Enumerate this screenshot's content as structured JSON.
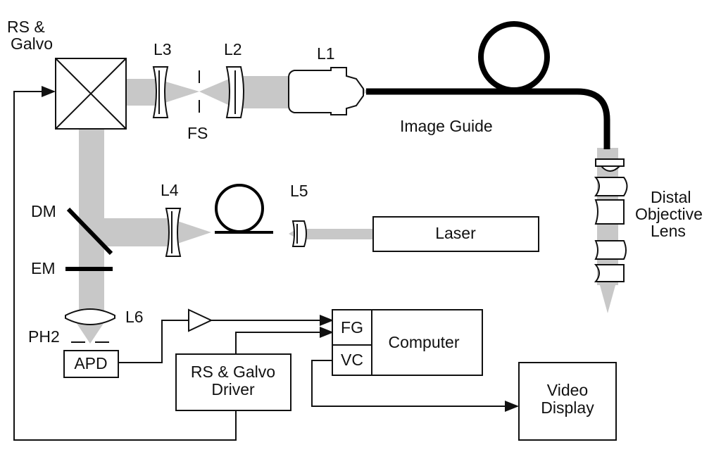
{
  "labels": {
    "rs_galvo": [
      "RS &",
      "Galvo"
    ],
    "l3": "L3",
    "l2": "L2",
    "l1": "L1",
    "fs": "FS",
    "image_guide": "Image Guide",
    "l4": "L4",
    "l5": "L5",
    "laser": "Laser",
    "dm": "DM",
    "em": "EM",
    "l6": "L6",
    "ph2": "PH2",
    "apd": "APD",
    "fg": "FG",
    "vc": "VC",
    "computer": "Computer",
    "driver": [
      "RS & Galvo",
      "Driver"
    ],
    "video_display": [
      "Video",
      "Display"
    ],
    "distal_lens": [
      "Distal",
      "Objective",
      "Lens"
    ]
  }
}
